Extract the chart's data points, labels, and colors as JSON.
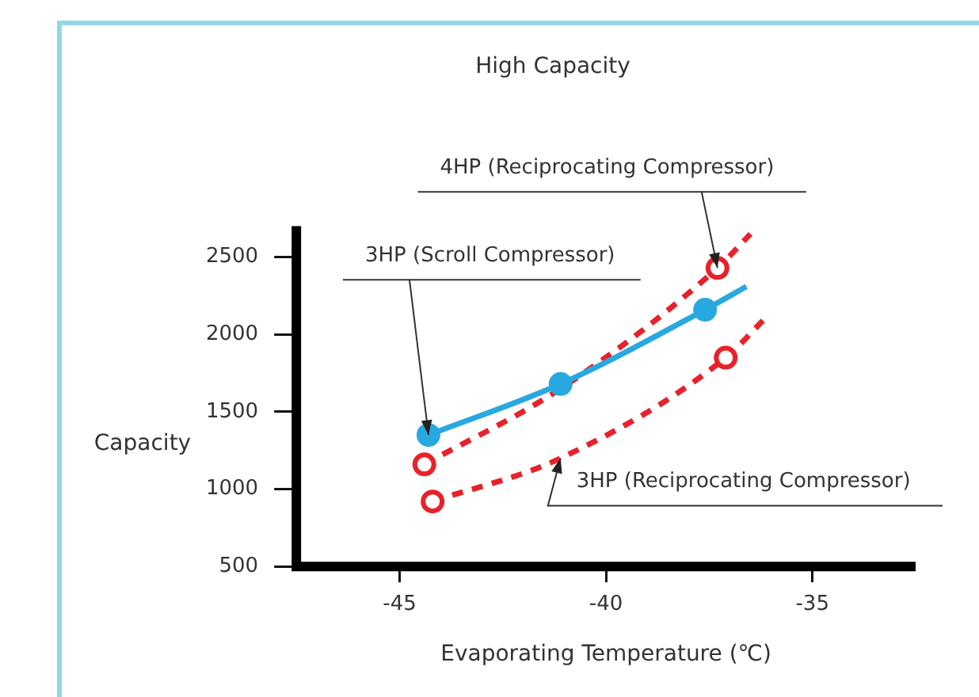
{
  "chart_data": {
    "type": "line",
    "title": "High Capacity",
    "xlabel": "Evaporating Temperature (℃)",
    "ylabel": "Capacity",
    "xlim": [
      -47.5,
      -32.5
    ],
    "ylim": [
      500,
      2700
    ],
    "xticks": [
      -45,
      -40,
      -35
    ],
    "yticks": [
      500,
      1000,
      1500,
      2000,
      2500
    ],
    "grid": false,
    "legend": false,
    "series": [
      {
        "type": "line",
        "color": "#29a8e0",
        "line_style": "solid",
        "marker": "none",
        "x": [
          -44.3,
          -41.1,
          -37.6,
          -36.6
        ],
        "values": [
          1350,
          1680,
          2160,
          2310
        ]
      },
      {
        "type": "line",
        "color": "#e8212a",
        "line_style": "dashed",
        "marker": "none",
        "x": [
          -44.4,
          -41.1,
          -37.3,
          -36.5
        ],
        "values": [
          1160,
          1650,
          2430,
          2650
        ]
      },
      {
        "type": "line",
        "color": "#e8212a",
        "line_style": "dashed",
        "marker": "none",
        "x": [
          -44.2,
          -41.1,
          -37.1,
          -36.2
        ],
        "values": [
          920,
          1200,
          1850,
          2090
        ]
      },
      {
        "type": "scatter",
        "color": "#29a8e0",
        "marker": "circle",
        "x": [
          -44.3,
          -41.1,
          -37.6
        ],
        "values": [
          1350,
          1680,
          2160
        ]
      },
      {
        "type": "scatter",
        "color": "#e8212a",
        "marker": "circle",
        "x": [
          -44.4,
          -37.3,
          -44.2,
          -37.1
        ],
        "values": [
          1160,
          2430,
          920,
          1850
        ]
      }
    ],
    "annotations": [
      {
        "text": "4HP (Reciprocating Compressor)",
        "x": -37.3,
        "y": 2430
      },
      {
        "text": "3HP (Scroll Compressor)",
        "x": -44.3,
        "y": 1350
      },
      {
        "text": "3HP (Reciprocating Compressor)",
        "x": -41.1,
        "y": 1200
      }
    ]
  }
}
